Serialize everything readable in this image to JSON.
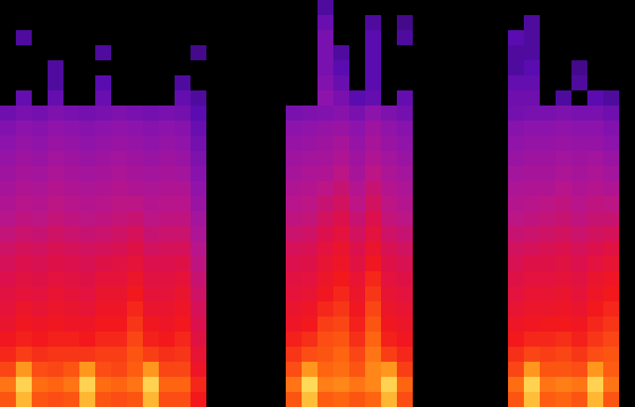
{
  "chart_data": {
    "type": "heatmap",
    "tick_labels": false,
    "grid": false,
    "zlim": [
      0,
      100
    ],
    "z": [
      [
        80,
        92,
        80,
        79,
        80,
        92,
        80,
        79,
        80,
        92,
        79,
        79,
        72,
        0,
        0,
        0,
        0,
        0,
        80,
        93,
        81,
        82,
        80,
        82,
        92,
        79,
        0,
        0,
        0,
        0,
        0,
        0,
        80,
        93,
        81,
        82,
        80,
        92,
        80,
        0
      ],
      [
        84,
        96,
        83,
        82,
        84,
        96,
        83,
        82,
        84,
        96,
        82,
        82,
        74,
        0,
        0,
        0,
        0,
        0,
        84,
        97,
        85,
        86,
        84,
        86,
        96,
        82,
        0,
        0,
        0,
        0,
        0,
        0,
        83,
        96,
        84,
        85,
        84,
        96,
        84,
        0
      ],
      [
        78,
        88,
        79,
        78,
        80,
        88,
        79,
        78,
        81,
        88,
        78,
        78,
        70,
        0,
        0,
        0,
        0,
        0,
        79,
        88,
        82,
        83,
        80,
        86,
        88,
        77,
        0,
        0,
        0,
        0,
        0,
        0,
        78,
        88,
        80,
        80,
        79,
        88,
        81,
        0
      ],
      [
        74,
        77,
        75,
        76,
        76,
        76,
        77,
        77,
        80,
        77,
        75,
        76,
        67,
        0,
        0,
        0,
        0,
        0,
        76,
        79,
        80,
        82,
        78,
        84,
        77,
        74,
        0,
        0,
        0,
        0,
        0,
        0,
        75,
        78,
        77,
        78,
        76,
        79,
        80,
        0
      ],
      [
        71,
        73,
        72,
        73,
        73,
        72,
        74,
        74,
        78,
        73,
        72,
        74,
        64,
        0,
        0,
        0,
        0,
        0,
        73,
        75,
        79,
        80,
        75,
        82,
        73,
        71,
        0,
        0,
        0,
        0,
        0,
        0,
        72,
        74,
        74,
        75,
        73,
        76,
        78,
        0
      ],
      [
        68,
        71,
        70,
        71,
        70,
        70,
        72,
        72,
        76,
        71,
        70,
        72,
        62,
        0,
        0,
        0,
        0,
        0,
        70,
        72,
        77,
        78,
        73,
        80,
        71,
        69,
        0,
        0,
        0,
        0,
        0,
        0,
        70,
        71,
        72,
        72,
        71,
        74,
        76,
        0
      ],
      [
        66,
        69,
        67,
        69,
        68,
        67,
        70,
        70,
        74,
        68,
        68,
        70,
        60,
        0,
        0,
        0,
        0,
        0,
        68,
        70,
        74,
        76,
        71,
        78,
        69,
        67,
        0,
        0,
        0,
        0,
        0,
        0,
        67,
        69,
        69,
        70,
        68,
        72,
        74,
        0
      ],
      [
        64,
        66,
        65,
        67,
        66,
        65,
        68,
        68,
        72,
        66,
        66,
        68,
        58,
        0,
        0,
        0,
        0,
        0,
        66,
        67,
        71,
        74,
        69,
        76,
        67,
        65,
        0,
        0,
        0,
        0,
        0,
        0,
        65,
        67,
        67,
        68,
        66,
        70,
        72,
        0
      ],
      [
        62,
        64,
        63,
        65,
        64,
        63,
        66,
        66,
        69,
        64,
        64,
        66,
        56,
        0,
        0,
        0,
        0,
        0,
        64,
        65,
        69,
        72,
        67,
        74,
        65,
        63,
        0,
        0,
        0,
        0,
        0,
        0,
        63,
        65,
        65,
        66,
        64,
        68,
        70,
        0
      ],
      [
        60,
        62,
        61,
        63,
        62,
        61,
        63,
        64,
        66,
        62,
        62,
        63,
        54,
        0,
        0,
        0,
        0,
        0,
        62,
        63,
        67,
        70,
        64,
        71,
        63,
        61,
        0,
        0,
        0,
        0,
        0,
        0,
        61,
        63,
        63,
        64,
        62,
        65,
        67,
        0
      ],
      [
        58,
        60,
        59,
        61,
        60,
        59,
        60,
        61,
        63,
        59,
        60,
        60,
        52,
        0,
        0,
        0,
        0,
        0,
        60,
        61,
        65,
        68,
        62,
        68,
        61,
        59,
        0,
        0,
        0,
        0,
        0,
        0,
        59,
        60,
        61,
        62,
        60,
        62,
        64,
        0
      ],
      [
        55,
        57,
        56,
        58,
        57,
        56,
        57,
        58,
        60,
        56,
        57,
        57,
        49,
        0,
        0,
        0,
        0,
        0,
        57,
        58,
        62,
        65,
        59,
        65,
        58,
        56,
        0,
        0,
        0,
        0,
        0,
        0,
        56,
        57,
        58,
        59,
        57,
        59,
        60,
        0
      ],
      [
        52,
        54,
        53,
        55,
        54,
        53,
        54,
        55,
        56,
        53,
        54,
        54,
        47,
        0,
        0,
        0,
        0,
        0,
        54,
        55,
        59,
        62,
        56,
        62,
        55,
        53,
        0,
        0,
        0,
        0,
        0,
        0,
        53,
        54,
        55,
        56,
        54,
        56,
        56,
        0
      ],
      [
        50,
        52,
        51,
        53,
        52,
        51,
        52,
        53,
        53,
        51,
        52,
        52,
        45,
        0,
        0,
        0,
        0,
        0,
        52,
        53,
        56,
        59,
        53,
        59,
        53,
        51,
        0,
        0,
        0,
        0,
        0,
        0,
        51,
        52,
        53,
        54,
        52,
        54,
        53,
        0
      ],
      [
        48,
        50,
        49,
        51,
        50,
        49,
        50,
        51,
        50,
        49,
        50,
        50,
        43,
        0,
        0,
        0,
        0,
        0,
        50,
        51,
        53,
        56,
        51,
        56,
        51,
        49,
        0,
        0,
        0,
        0,
        0,
        0,
        49,
        50,
        50,
        52,
        50,
        51,
        50,
        0
      ],
      [
        46,
        48,
        47,
        49,
        48,
        47,
        48,
        49,
        48,
        47,
        48,
        47,
        41,
        0,
        0,
        0,
        0,
        0,
        48,
        49,
        50,
        53,
        48,
        53,
        49,
        47,
        0,
        0,
        0,
        0,
        0,
        0,
        47,
        48,
        48,
        49,
        48,
        49,
        47,
        0
      ],
      [
        44,
        46,
        45,
        47,
        46,
        45,
        46,
        47,
        46,
        45,
        46,
        45,
        39,
        0,
        0,
        0,
        0,
        0,
        46,
        47,
        48,
        50,
        46,
        50,
        47,
        45,
        0,
        0,
        0,
        0,
        0,
        0,
        45,
        46,
        46,
        47,
        46,
        47,
        45,
        0
      ],
      [
        42,
        44,
        43,
        45,
        44,
        43,
        44,
        45,
        44,
        43,
        44,
        43,
        37,
        0,
        0,
        0,
        0,
        0,
        44,
        45,
        46,
        48,
        44,
        48,
        45,
        43,
        0,
        0,
        0,
        0,
        0,
        0,
        43,
        44,
        44,
        45,
        44,
        44,
        42,
        0
      ],
      [
        40,
        42,
        41,
        43,
        42,
        41,
        42,
        43,
        42,
        41,
        42,
        41,
        35,
        0,
        0,
        0,
        0,
        0,
        42,
        43,
        44,
        45,
        42,
        46,
        43,
        41,
        0,
        0,
        0,
        0,
        0,
        0,
        41,
        42,
        42,
        43,
        42,
        42,
        40,
        0
      ],
      [
        36,
        38,
        37,
        39,
        38,
        37,
        38,
        39,
        38,
        37,
        38,
        37,
        32,
        0,
        0,
        0,
        0,
        0,
        38,
        39,
        40,
        41,
        38,
        42,
        39,
        37,
        0,
        0,
        0,
        0,
        0,
        0,
        37,
        38,
        38,
        39,
        38,
        38,
        36,
        0
      ],
      [
        0,
        34,
        0,
        34,
        0,
        0,
        35,
        0,
        0,
        0,
        0,
        34,
        30,
        0,
        0,
        0,
        0,
        0,
        0,
        0,
        42,
        38,
        32,
        34,
        0,
        34,
        0,
        0,
        0,
        0,
        0,
        0,
        36,
        36,
        0,
        30,
        0,
        32,
        30,
        0
      ],
      [
        0,
        0,
        0,
        30,
        0,
        0,
        32,
        0,
        0,
        0,
        0,
        30,
        0,
        0,
        0,
        0,
        0,
        0,
        0,
        0,
        40,
        35,
        0,
        32,
        0,
        0,
        0,
        0,
        0,
        0,
        0,
        0,
        34,
        34,
        0,
        0,
        30,
        0,
        0,
        0
      ],
      [
        0,
        0,
        0,
        30,
        0,
        0,
        0,
        0,
        0,
        0,
        0,
        0,
        0,
        0,
        0,
        0,
        0,
        0,
        0,
        0,
        38,
        32,
        0,
        32,
        0,
        0,
        0,
        0,
        0,
        0,
        0,
        0,
        30,
        32,
        0,
        0,
        28,
        0,
        0,
        0
      ],
      [
        0,
        0,
        0,
        0,
        0,
        0,
        30,
        0,
        0,
        0,
        0,
        0,
        28,
        0,
        0,
        0,
        0,
        0,
        0,
        0,
        38,
        30,
        0,
        32,
        0,
        0,
        0,
        0,
        0,
        0,
        0,
        0,
        30,
        30,
        0,
        0,
        0,
        0,
        0,
        0
      ],
      [
        0,
        30,
        0,
        0,
        0,
        0,
        0,
        0,
        0,
        0,
        0,
        0,
        0,
        0,
        0,
        0,
        0,
        0,
        0,
        0,
        38,
        0,
        0,
        32,
        0,
        30,
        0,
        0,
        0,
        0,
        0,
        0,
        32,
        30,
        0,
        0,
        0,
        0,
        0,
        0
      ],
      [
        0,
        0,
        0,
        0,
        0,
        0,
        0,
        0,
        0,
        0,
        0,
        0,
        0,
        0,
        0,
        0,
        0,
        0,
        0,
        0,
        35,
        0,
        0,
        30,
        0,
        28,
        0,
        0,
        0,
        0,
        0,
        0,
        0,
        30,
        0,
        0,
        0,
        0,
        0,
        0
      ],
      [
        0,
        0,
        0,
        0,
        0,
        0,
        0,
        0,
        0,
        0,
        0,
        0,
        0,
        0,
        0,
        0,
        0,
        0,
        0,
        0,
        30,
        0,
        0,
        0,
        0,
        0,
        0,
        0,
        0,
        0,
        0,
        0,
        0,
        0,
        0,
        0,
        0,
        0,
        0,
        0
      ]
    ]
  }
}
